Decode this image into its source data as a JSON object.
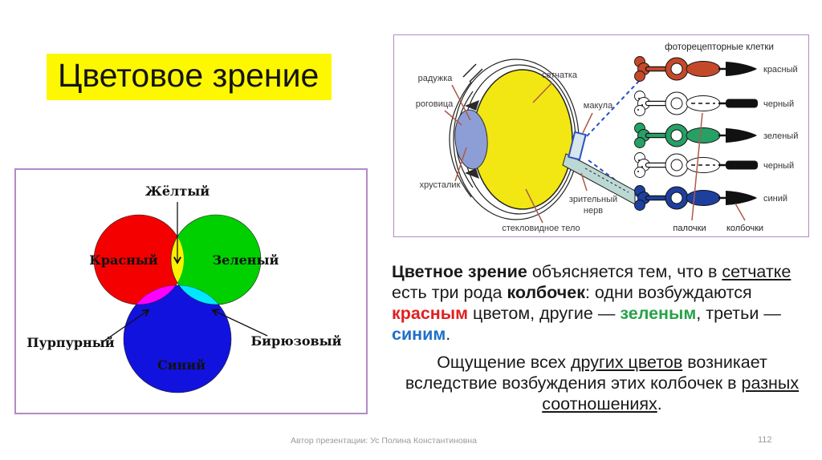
{
  "colors": {
    "title_highlight": "#fdf800",
    "panel_border": "#b28ac8",
    "venn_red": "#f40000",
    "venn_green": "#00cf00",
    "venn_blue": "#1212de",
    "venn_yellow": "#fff200",
    "venn_magenta": "#ff00ff",
    "venn_cyan": "#00e8ff",
    "eye_vitreous_yellow": "#f2e712",
    "eye_lens_blue": "#8d9ed6",
    "optic_nerve_fill": "#bcd8d4",
    "macula_fill": "#d8e6ee",
    "macula_stroke": "#2a52c0",
    "leader_line": "#ad5a4a",
    "accent_red": "#e02020",
    "accent_green": "#28a24a",
    "accent_blue": "#1f6fc9",
    "footer_gray": "#9b9b9b"
  },
  "slide": {
    "title": "Цветовое зрение",
    "footer_author": "Автор презентации: Ус Полина Константиновна",
    "footer_page": "112"
  },
  "venn": {
    "labels": {
      "yellow": "Жёлтый",
      "red": "Красный",
      "green": "Зеленый",
      "blue": "Синий",
      "magenta": "Пурпурный",
      "cyan": "Бирюзовый"
    }
  },
  "eye": {
    "labels": {
      "iris": "радужка",
      "cornea": "роговица",
      "retina": "сетчатка",
      "macula": "макула",
      "lens": "хрусталик",
      "optic_nerve_line1": "зрительный",
      "optic_nerve_line2": "нерв",
      "vitreous": "стекловидное тело"
    },
    "photoreceptors": {
      "title": "фоторецепторные клетки",
      "rows": [
        {
          "label": "красный",
          "color": "#c4492a",
          "type": "cone"
        },
        {
          "label": "черный",
          "color": "#ffffff",
          "type": "rod"
        },
        {
          "label": "зеленый",
          "color": "#27a066",
          "type": "cone"
        },
        {
          "label": "черный",
          "color": "#ffffff",
          "type": "rod"
        },
        {
          "label": "синий",
          "color": "#1d3f9e",
          "type": "cone"
        }
      ],
      "rods_label": "палочки",
      "cones_label": "колбочки"
    }
  },
  "body_text": {
    "para1": [
      {
        "t": "Цветное зрение",
        "s": "b"
      },
      {
        "t": " объясняется тем, что в ",
        "s": ""
      },
      {
        "t": "сетчатке",
        "s": "u"
      },
      {
        "t": " есть три рода ",
        "s": ""
      },
      {
        "t": "колбочек",
        "s": "b"
      },
      {
        "t": ": одни возбуждаются ",
        "s": ""
      },
      {
        "t": "красным",
        "s": "b",
        "c": "accent_red"
      },
      {
        "t": " цветом, другие — ",
        "s": ""
      },
      {
        "t": "зеленым",
        "s": "b",
        "c": "accent_green"
      },
      {
        "t": ", третьи — ",
        "s": ""
      },
      {
        "t": "синим",
        "s": "b",
        "c": "accent_blue"
      },
      {
        "t": ".",
        "s": ""
      }
    ],
    "para2": [
      {
        "t": "Ощущение всех ",
        "s": ""
      },
      {
        "t": "других цветов",
        "s": "u"
      },
      {
        "t": " возникает вследствие возбуждения этих колбочек в ",
        "s": ""
      },
      {
        "t": "разных соотношениях",
        "s": "u"
      },
      {
        "t": ".",
        "s": ""
      }
    ]
  }
}
